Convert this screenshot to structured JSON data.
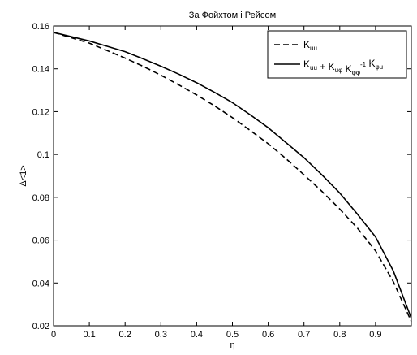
{
  "chart_data": {
    "type": "line",
    "title": "За Фойхтом і Рейсом",
    "xlabel": "η",
    "ylabel": "Δ<1>",
    "xlim": [
      0,
      1
    ],
    "ylim": [
      0.02,
      0.16
    ],
    "xticks": [
      "0",
      "0.1",
      "0.2",
      "0.3",
      "0.4",
      "0.5",
      "0.6",
      "0.7",
      "0.8",
      "0.9"
    ],
    "yticks": [
      "0.02",
      "0.04",
      "0.06",
      "0.08",
      "0.1",
      "0.12",
      "0.14",
      "0.16"
    ],
    "grid": false,
    "legend_position": "top-right",
    "series": [
      {
        "name": "K_uu",
        "style": "dashed",
        "color": "#000000",
        "x": [
          0,
          0.05,
          0.1,
          0.15,
          0.2,
          0.25,
          0.3,
          0.35,
          0.4,
          0.45,
          0.5,
          0.55,
          0.6,
          0.65,
          0.7,
          0.75,
          0.8,
          0.85,
          0.9,
          0.95,
          1.0
        ],
        "y": [
          0.157,
          0.1545,
          0.152,
          0.1485,
          0.145,
          0.1412,
          0.137,
          0.1325,
          0.1278,
          0.1227,
          0.1172,
          0.1112,
          0.105,
          0.098,
          0.0905,
          0.0828,
          0.0745,
          0.0655,
          0.055,
          0.0405,
          0.022
        ]
      },
      {
        "name": "K_uu + K_uφ K_φφ^-1 K_φu",
        "style": "solid",
        "color": "#000000",
        "x": [
          0,
          0.05,
          0.1,
          0.15,
          0.2,
          0.25,
          0.3,
          0.35,
          0.4,
          0.45,
          0.5,
          0.55,
          0.6,
          0.65,
          0.7,
          0.75,
          0.8,
          0.85,
          0.9,
          0.95,
          1.0
        ],
        "y": [
          0.157,
          0.155,
          0.153,
          0.1505,
          0.148,
          0.1447,
          0.1412,
          0.1375,
          0.1335,
          0.129,
          0.1242,
          0.1185,
          0.1125,
          0.1055,
          0.0985,
          0.0905,
          0.082,
          0.072,
          0.0615,
          0.0455,
          0.0235
        ]
      }
    ],
    "legend": {
      "entries": [
        {
          "style": "dashed",
          "base": "K",
          "sub": "uu"
        },
        {
          "style": "solid",
          "parts": [
            {
              "base": "K",
              "sub": "uu"
            },
            {
              "text": " + "
            },
            {
              "base": "K",
              "sub": "uφ"
            },
            {
              "text": " "
            },
            {
              "base": "K",
              "sub": "φφ",
              "sup": "-1"
            },
            {
              "text": " "
            },
            {
              "base": "K",
              "sub": "φu"
            }
          ]
        }
      ]
    }
  }
}
